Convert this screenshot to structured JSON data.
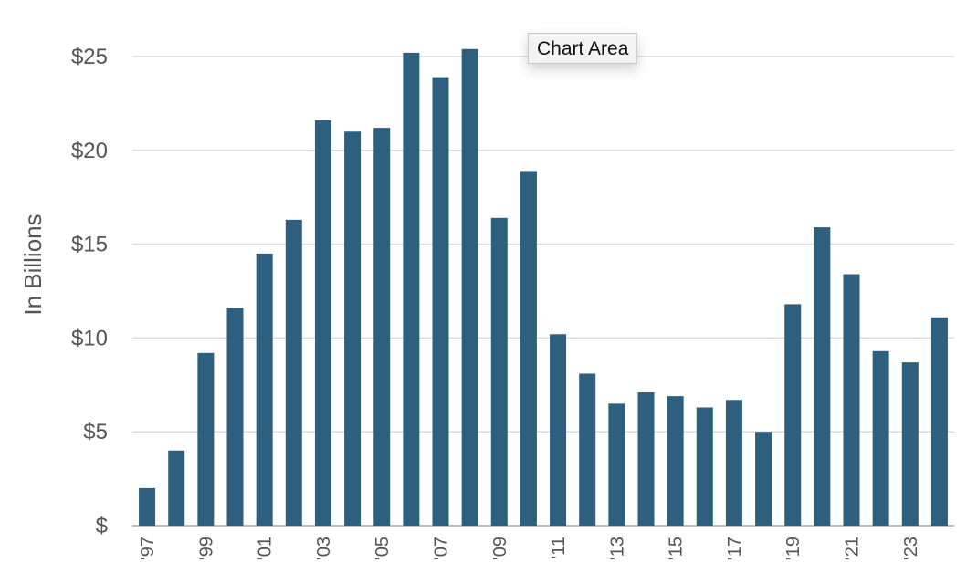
{
  "tooltip": {
    "label": "Chart Area"
  },
  "chart_data": {
    "type": "bar",
    "title": "",
    "xlabel": "",
    "ylabel": "In Billions",
    "ylim": [
      0,
      25
    ],
    "yticks": [
      {
        "value": 0,
        "label": "$"
      },
      {
        "value": 5,
        "label": "$5"
      },
      {
        "value": 10,
        "label": "$10"
      },
      {
        "value": 15,
        "label": "$15"
      },
      {
        "value": 20,
        "label": "$20"
      },
      {
        "value": 25,
        "label": "$25"
      }
    ],
    "grid": "horizontal",
    "bar_color": "#2e5f7e",
    "categories": [
      "'97",
      "'98",
      "'99",
      "'00",
      "'01",
      "'02",
      "'03",
      "'04",
      "'05",
      "'06",
      "'07",
      "'08",
      "'09",
      "'10",
      "'11",
      "'12",
      "'13",
      "'14",
      "'15",
      "'16",
      "'17",
      "'18",
      "'19",
      "'20",
      "'21",
      "'22",
      "'23",
      "'24"
    ],
    "values": [
      2.0,
      4.0,
      9.2,
      11.6,
      14.5,
      16.3,
      21.6,
      21.0,
      21.2,
      25.2,
      23.9,
      25.4,
      16.4,
      18.9,
      10.2,
      8.1,
      6.5,
      7.1,
      6.9,
      6.3,
      6.7,
      5.0,
      11.8,
      15.9,
      13.4,
      9.3,
      8.7,
      11.1
    ],
    "xtick_labels": [
      "'97",
      "'99",
      "'01",
      "'03",
      "'05",
      "'07",
      "'09",
      "'11",
      "'13",
      "'15",
      "'17",
      "'19",
      "'21",
      "'23"
    ]
  }
}
